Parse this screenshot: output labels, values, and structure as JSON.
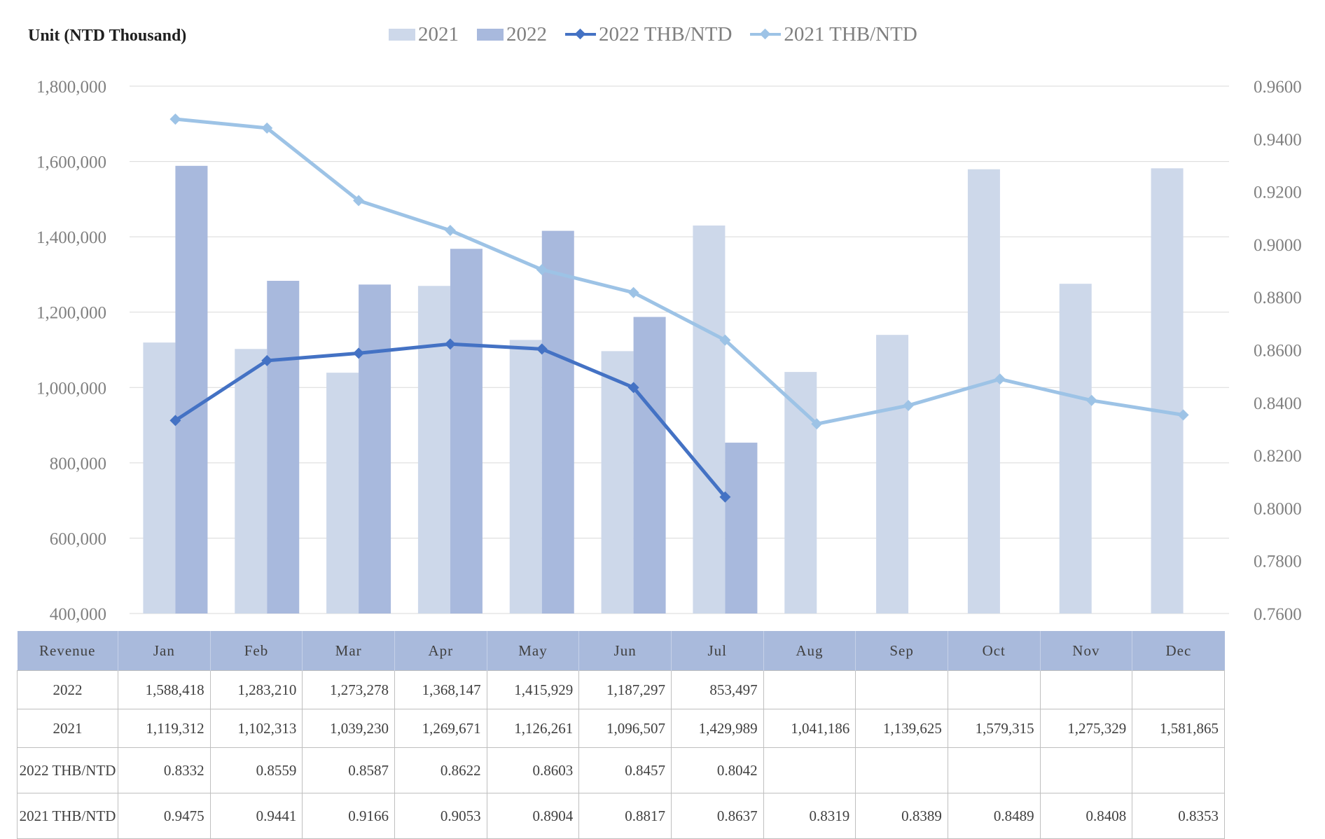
{
  "unit_label": "Unit (NTD Thousand)",
  "legend": [
    {
      "label": "2021",
      "kind": "bar",
      "color": "#cdd8ea"
    },
    {
      "label": "2022",
      "kind": "bar",
      "color": "#a8b9dd"
    },
    {
      "label": "2022 THB/NTD",
      "kind": "line",
      "color": "#4472c4"
    },
    {
      "label": "2021 THB/NTD",
      "kind": "line",
      "color": "#9dc3e6"
    }
  ],
  "table": {
    "header_label": "Revenue",
    "months": [
      "Jan",
      "Feb",
      "Mar",
      "Apr",
      "May",
      "Jun",
      "Jul",
      "Aug",
      "Sep",
      "Oct",
      "Nov",
      "Dec"
    ],
    "rows": [
      {
        "label": "2022",
        "cells": [
          "1,588,418",
          "1,283,210",
          "1,273,278",
          "1,368,147",
          "1,415,929",
          "1,187,297",
          "853,497",
          "",
          "",
          "",
          "",
          ""
        ]
      },
      {
        "label": "2021",
        "cells": [
          "1,119,312",
          "1,102,313",
          "1,039,230",
          "1,269,671",
          "1,126,261",
          "1,096,507",
          "1,429,989",
          "1,041,186",
          "1,139,625",
          "1,579,315",
          "1,275,329",
          "1,581,865"
        ]
      },
      {
        "label": "2022 THB/NTD",
        "cells": [
          "0.8332",
          "0.8559",
          "0.8587",
          "0.8622",
          "0.8603",
          "0.8457",
          "0.8042",
          "",
          "",
          "",
          "",
          ""
        ]
      },
      {
        "label": "2021 THB/NTD",
        "cells": [
          "0.9475",
          "0.9441",
          "0.9166",
          "0.9053",
          "0.8904",
          "0.8817",
          "0.8637",
          "0.8319",
          "0.8389",
          "0.8489",
          "0.8408",
          "0.8353"
        ]
      }
    ]
  },
  "chart_data": {
    "type": "bar",
    "categories": [
      "Jan",
      "Feb",
      "Mar",
      "Apr",
      "May",
      "Jun",
      "Jul",
      "Aug",
      "Sep",
      "Oct",
      "Nov",
      "Dec"
    ],
    "series": [
      {
        "name": "2021",
        "type": "bar",
        "axis": "left",
        "color": "#cdd8ea",
        "values": [
          1119312,
          1102313,
          1039230,
          1269671,
          1126261,
          1096507,
          1429989,
          1041186,
          1139625,
          1579315,
          1275329,
          1581865
        ]
      },
      {
        "name": "2022",
        "type": "bar",
        "axis": "left",
        "color": "#a8b9dd",
        "values": [
          1588418,
          1283210,
          1273278,
          1368147,
          1415929,
          1187297,
          853497,
          null,
          null,
          null,
          null,
          null
        ]
      },
      {
        "name": "2022 THB/NTD",
        "type": "line",
        "axis": "right",
        "color": "#4472c4",
        "values": [
          0.8332,
          0.8559,
          0.8587,
          0.8622,
          0.8603,
          0.8457,
          0.8042,
          null,
          null,
          null,
          null,
          null
        ]
      },
      {
        "name": "2021 THB/NTD",
        "type": "line",
        "axis": "right",
        "color": "#9dc3e6",
        "values": [
          0.9475,
          0.9441,
          0.9166,
          0.9053,
          0.8904,
          0.8817,
          0.8637,
          0.8319,
          0.8389,
          0.8489,
          0.8408,
          0.8353
        ]
      }
    ],
    "y_left": {
      "min": 400000,
      "max": 1800000,
      "ticks": [
        "400,000",
        "600,000",
        "800,000",
        "1,000,000",
        "1,200,000",
        "1,400,000",
        "1,600,000",
        "1,800,000"
      ]
    },
    "y_right": {
      "min": 0.76,
      "max": 0.96,
      "ticks": [
        "0.7600",
        "0.7800",
        "0.8000",
        "0.8200",
        "0.8400",
        "0.8600",
        "0.8800",
        "0.9000",
        "0.9200",
        "0.9400",
        "0.9600"
      ]
    },
    "grid": true,
    "legend_position": "top"
  }
}
